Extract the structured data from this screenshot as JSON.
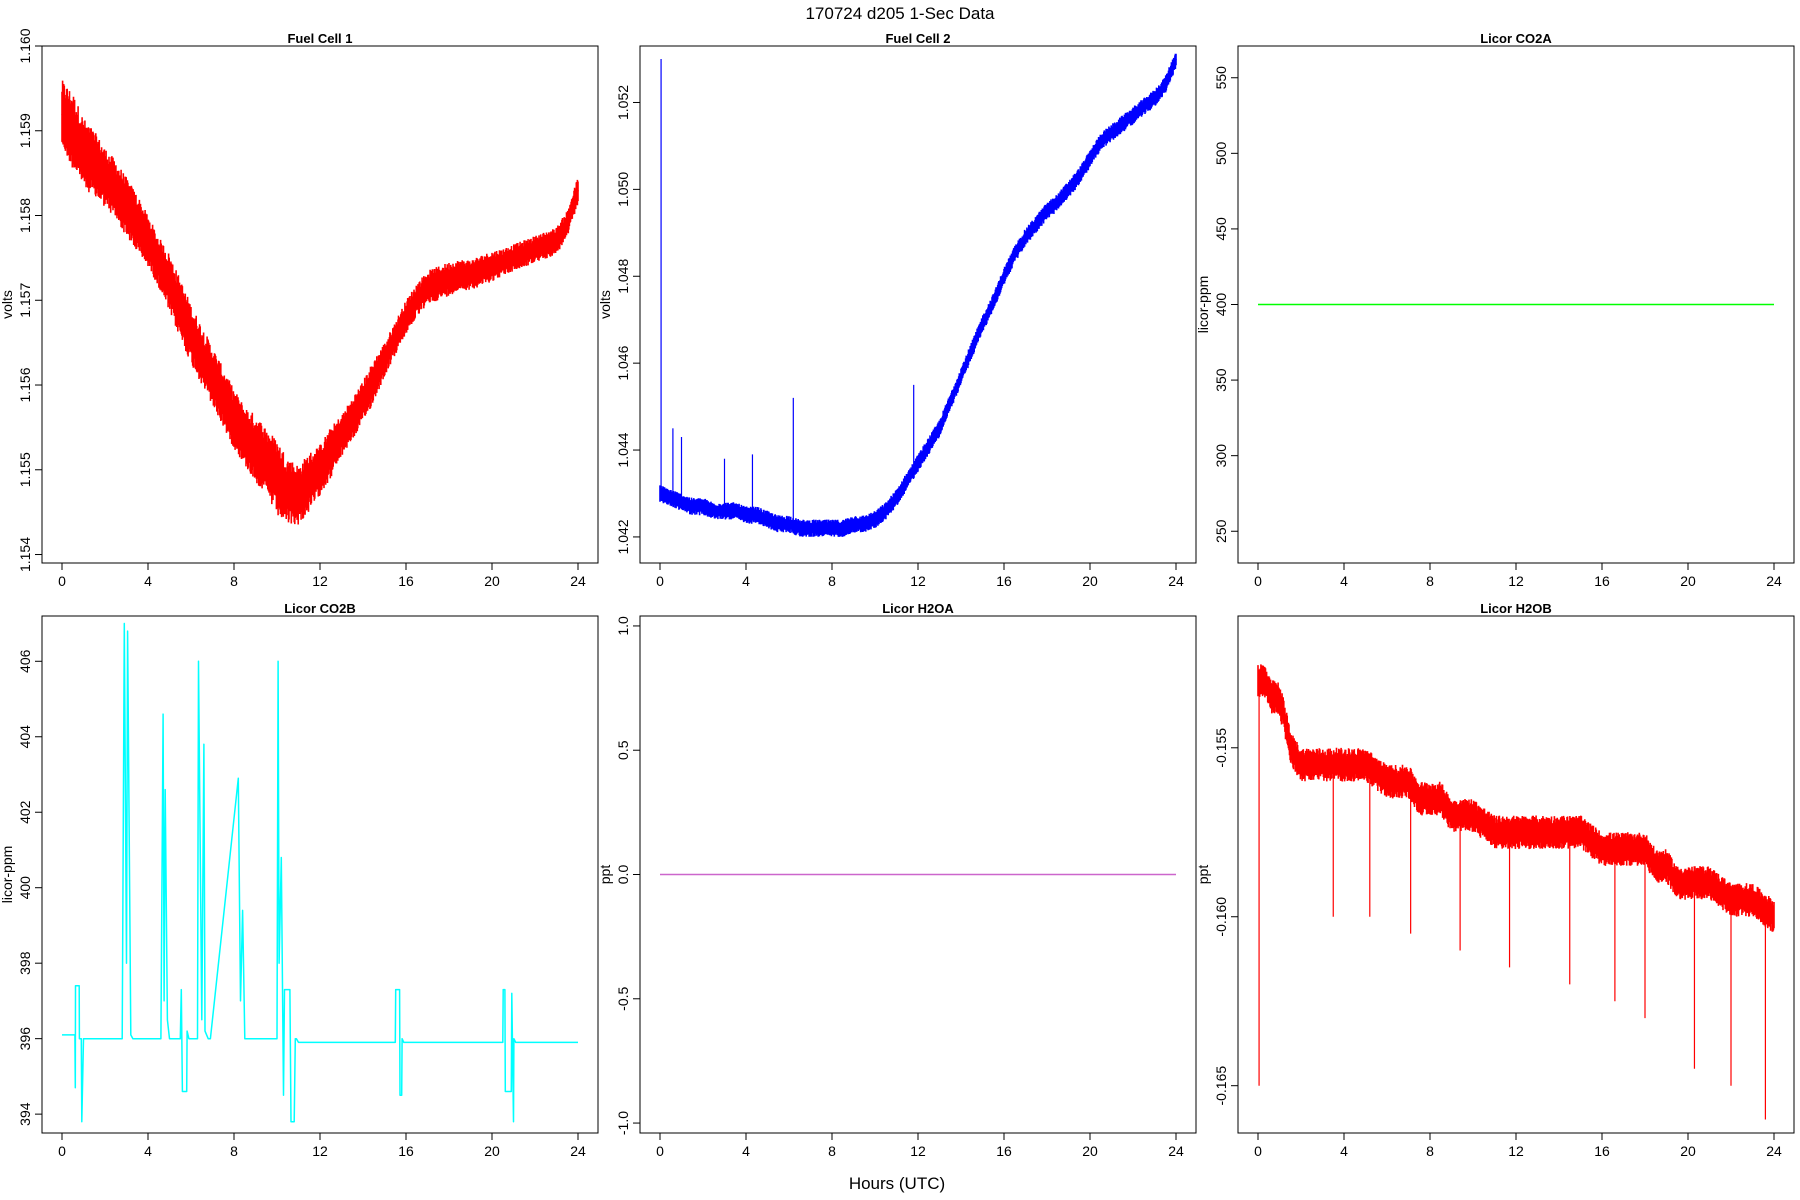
{
  "figure": {
    "title": "170724   d205   1-Sec Data",
    "xlabel": "Hours (UTC)"
  },
  "chart_data": [
    {
      "type": "line",
      "title": "Fuel Cell 1",
      "ylabel": "volts",
      "color": "#ff0000",
      "xlim": [
        0,
        24
      ],
      "ylim": [
        1.1539,
        1.16
      ],
      "xticks": [
        "0",
        "4",
        "8",
        "12",
        "16",
        "20",
        "24"
      ],
      "yticks": [
        "1.154",
        "1.155",
        "1.156",
        "1.157",
        "1.158",
        "1.159",
        "1.160"
      ],
      "x": [
        0,
        0.5,
        1,
        1.5,
        2,
        2.5,
        3,
        3.5,
        4,
        4.5,
        5,
        5.5,
        6,
        6.5,
        7,
        7.5,
        8,
        8.5,
        9,
        9.5,
        10,
        10.5,
        11,
        11.5,
        12,
        12.5,
        13,
        13.5,
        14,
        14.5,
        15,
        15.5,
        16,
        16.5,
        17,
        17.5,
        18,
        18.5,
        19,
        19.5,
        20,
        20.5,
        21,
        21.5,
        22,
        22.5,
        23,
        23.5,
        24
      ],
      "y": [
        1.1592,
        1.159,
        1.15875,
        1.1586,
        1.15845,
        1.1583,
        1.1581,
        1.1579,
        1.1577,
        1.15745,
        1.1572,
        1.1569,
        1.1566,
        1.15635,
        1.1561,
        1.15585,
        1.1556,
        1.1554,
        1.15525,
        1.1551,
        1.1549,
        1.15475,
        1.1547,
        1.15485,
        1.155,
        1.1552,
        1.1554,
        1.1556,
        1.1558,
        1.15605,
        1.1563,
        1.15655,
        1.1568,
        1.157,
        1.15715,
        1.1572,
        1.15725,
        1.1573,
        1.1573,
        1.15735,
        1.1574,
        1.15745,
        1.1575,
        1.15755,
        1.1576,
        1.15765,
        1.1577,
        1.1579,
        1.1583
      ],
      "band": [
        0.0004,
        0.00045,
        0.0004,
        0.0004,
        0.00035,
        0.00035,
        0.00035,
        0.00035,
        0.0003,
        0.0003,
        0.00035,
        0.00035,
        0.00035,
        0.00035,
        0.00035,
        0.00035,
        0.00035,
        0.00035,
        0.0004,
        0.0004,
        0.00045,
        0.0004,
        0.00035,
        0.00035,
        0.0003,
        0.0003,
        0.00025,
        0.00025,
        0.00025,
        0.00025,
        0.0002,
        0.0002,
        0.0002,
        0.0002,
        0.0002,
        0.0002,
        0.0002,
        0.00018,
        0.00018,
        0.00018,
        0.00018,
        0.00016,
        0.00016,
        0.00016,
        0.00016,
        0.00016,
        0.00016,
        0.00016,
        0.00016
      ]
    },
    {
      "type": "line",
      "title": "Fuel Cell 2",
      "ylabel": "volts",
      "color": "#0000ff",
      "xlim": [
        0,
        24
      ],
      "ylim": [
        1.0414,
        1.0533
      ],
      "xticks": [
        "0",
        "4",
        "8",
        "12",
        "16",
        "20",
        "24"
      ],
      "yticks": [
        "1.042",
        "1.044",
        "1.046",
        "1.048",
        "1.050",
        "1.052"
      ],
      "x": [
        0,
        0.5,
        1,
        1.5,
        2,
        2.5,
        3,
        3.5,
        4,
        4.5,
        5,
        5.5,
        6,
        6.5,
        7,
        7.5,
        8,
        8.5,
        9,
        9.5,
        10,
        10.5,
        11,
        11.5,
        12,
        12.5,
        13,
        13.5,
        14,
        14.5,
        15,
        15.5,
        16,
        16.5,
        17,
        17.5,
        18,
        18.5,
        19,
        19.5,
        20,
        20.5,
        21,
        21.5,
        22,
        22.5,
        23,
        23.5,
        24
      ],
      "y": [
        1.043,
        1.0429,
        1.0428,
        1.0427,
        1.0427,
        1.0426,
        1.0426,
        1.0426,
        1.0425,
        1.0425,
        1.0424,
        1.0423,
        1.0423,
        1.0422,
        1.0422,
        1.0422,
        1.0422,
        1.0422,
        1.0423,
        1.0423,
        1.0424,
        1.0426,
        1.0429,
        1.0433,
        1.0437,
        1.0441,
        1.0445,
        1.0451,
        1.0457,
        1.0463,
        1.0469,
        1.0474,
        1.048,
        1.0485,
        1.0489,
        1.0492,
        1.0495,
        1.0497,
        1.05,
        1.0503,
        1.0507,
        1.0511,
        1.0513,
        1.0515,
        1.0517,
        1.0519,
        1.0521,
        1.0524,
        1.053
      ],
      "band": [
        0.0002
      ],
      "spikes": [
        [
          0.05,
          1.053
        ],
        [
          0.6,
          1.0445
        ],
        [
          1.0,
          1.0443
        ],
        [
          3.0,
          1.0438
        ],
        [
          4.3,
          1.0439
        ],
        [
          6.2,
          1.0452
        ],
        [
          11.8,
          1.0455
        ]
      ]
    },
    {
      "type": "line",
      "title": "Licor CO2A",
      "ylabel": "licor-ppm",
      "color": "#00ff00",
      "xlim": [
        0,
        24
      ],
      "ylim": [
        229,
        571
      ],
      "xticks": [
        "0",
        "4",
        "8",
        "12",
        "16",
        "20",
        "24"
      ],
      "yticks": [
        "250",
        "300",
        "350",
        "400",
        "450",
        "500",
        "550"
      ],
      "x": [
        0,
        24
      ],
      "y": [
        400,
        400
      ]
    },
    {
      "type": "line",
      "title": "Licor CO2B",
      "ylabel": "licor-ppm",
      "color": "#00ffff",
      "xlim": [
        0,
        24
      ],
      "ylim": [
        393.5,
        407.2
      ],
      "xticks": [
        "0",
        "4",
        "8",
        "12",
        "16",
        "20",
        "24"
      ],
      "yticks": [
        "394",
        "396",
        "398",
        "400",
        "402",
        "404",
        "406"
      ],
      "x": [
        0,
        0.6,
        0.62,
        0.63,
        0.8,
        0.81,
        0.9,
        0.92,
        1.0,
        2.8,
        2.9,
        3.0,
        3.05,
        3.2,
        3.3,
        4.6,
        4.7,
        4.75,
        4.8,
        4.9,
        5.0,
        5.5,
        5.55,
        5.6,
        5.8,
        5.82,
        5.9,
        6.3,
        6.35,
        6.5,
        6.6,
        6.65,
        6.8,
        6.9,
        8.2,
        8.3,
        8.4,
        8.5,
        8.6,
        8.7,
        10.0,
        10.05,
        10.1,
        10.2,
        10.3,
        10.35,
        10.6,
        10.65,
        10.8,
        10.85,
        10.9,
        11.0,
        15.5,
        15.52,
        15.7,
        15.72,
        15.8,
        15.82,
        15.9,
        20.5,
        20.52,
        20.6,
        20.62,
        20.9,
        20.92,
        21.0,
        21.02,
        21.1,
        24
      ],
      "y": [
        396.1,
        396.1,
        394.7,
        397.4,
        397.4,
        396.0,
        396.0,
        393.8,
        396.0,
        396.0,
        407.0,
        398.0,
        406.8,
        396.1,
        396.0,
        396.0,
        404.6,
        397.0,
        402.6,
        396.5,
        396.0,
        396.0,
        397.3,
        394.6,
        394.6,
        396.2,
        396.0,
        396.0,
        406.0,
        396.5,
        403.8,
        396.2,
        396.0,
        396.0,
        402.9,
        397.0,
        399.4,
        396.0,
        396.0,
        396.0,
        396.0,
        406.0,
        398.0,
        400.8,
        394.5,
        397.3,
        397.3,
        393.8,
        393.8,
        396.0,
        396.0,
        395.9,
        395.9,
        397.3,
        397.3,
        394.5,
        394.5,
        396.0,
        395.9,
        395.9,
        397.3,
        397.3,
        394.6,
        394.6,
        397.2,
        393.8,
        396.0,
        395.9,
        395.9
      ]
    },
    {
      "type": "line",
      "title": "Licor H2OA",
      "ylabel": "ppt",
      "color": "#cc66cc",
      "xlim": [
        0,
        24
      ],
      "ylim": [
        -1.04,
        1.04
      ],
      "xticks": [
        "0",
        "4",
        "8",
        "12",
        "16",
        "20",
        "24"
      ],
      "yticks": [
        "-1.0",
        "-0.5",
        "0.0",
        "0.5",
        "1.0"
      ],
      "x": [
        0,
        24
      ],
      "y": [
        0,
        0
      ]
    },
    {
      "type": "line",
      "title": "Licor H2OB",
      "ylabel": "ppt",
      "color": "#ff0000",
      "xlim": [
        0,
        24
      ],
      "ylim": [
        -0.1664,
        -0.1511
      ],
      "xticks": [
        "0",
        "4",
        "8",
        "12",
        "16",
        "20",
        "24"
      ],
      "yticks": [
        "-0.165",
        "-0.160",
        "-0.155"
      ],
      "x": [
        0,
        0.3,
        0.6,
        0.9,
        1.2,
        1.5,
        2,
        3,
        4,
        5,
        6,
        6.5,
        7,
        7.5,
        8,
        8.5,
        9,
        9.5,
        10,
        11,
        12,
        13,
        14,
        15,
        16,
        17,
        18,
        18.5,
        19,
        19.5,
        20,
        20.5,
        21,
        22,
        23,
        24
      ],
      "y": [
        -0.153,
        -0.153,
        -0.1535,
        -0.1535,
        -0.154,
        -0.155,
        -0.1555,
        -0.1555,
        -0.1555,
        -0.1555,
        -0.156,
        -0.156,
        -0.156,
        -0.1565,
        -0.1565,
        -0.1565,
        -0.157,
        -0.157,
        -0.157,
        -0.1575,
        -0.1575,
        -0.1575,
        -0.1575,
        -0.1575,
        -0.158,
        -0.158,
        -0.158,
        -0.1585,
        -0.1585,
        -0.159,
        -0.159,
        -0.159,
        -0.159,
        -0.1595,
        -0.1595,
        -0.16
      ],
      "band": [
        0.0005
      ],
      "spikes": [
        [
          0.05,
          -0.165
        ],
        [
          3.5,
          -0.16
        ],
        [
          5.2,
          -0.16
        ],
        [
          7.1,
          -0.1605
        ],
        [
          9.4,
          -0.161
        ],
        [
          11.7,
          -0.1615
        ],
        [
          14.5,
          -0.162
        ],
        [
          16.6,
          -0.1625
        ],
        [
          18.0,
          -0.163
        ],
        [
          20.3,
          -0.1645
        ],
        [
          22.0,
          -0.165
        ],
        [
          23.6,
          -0.166
        ]
      ]
    }
  ]
}
